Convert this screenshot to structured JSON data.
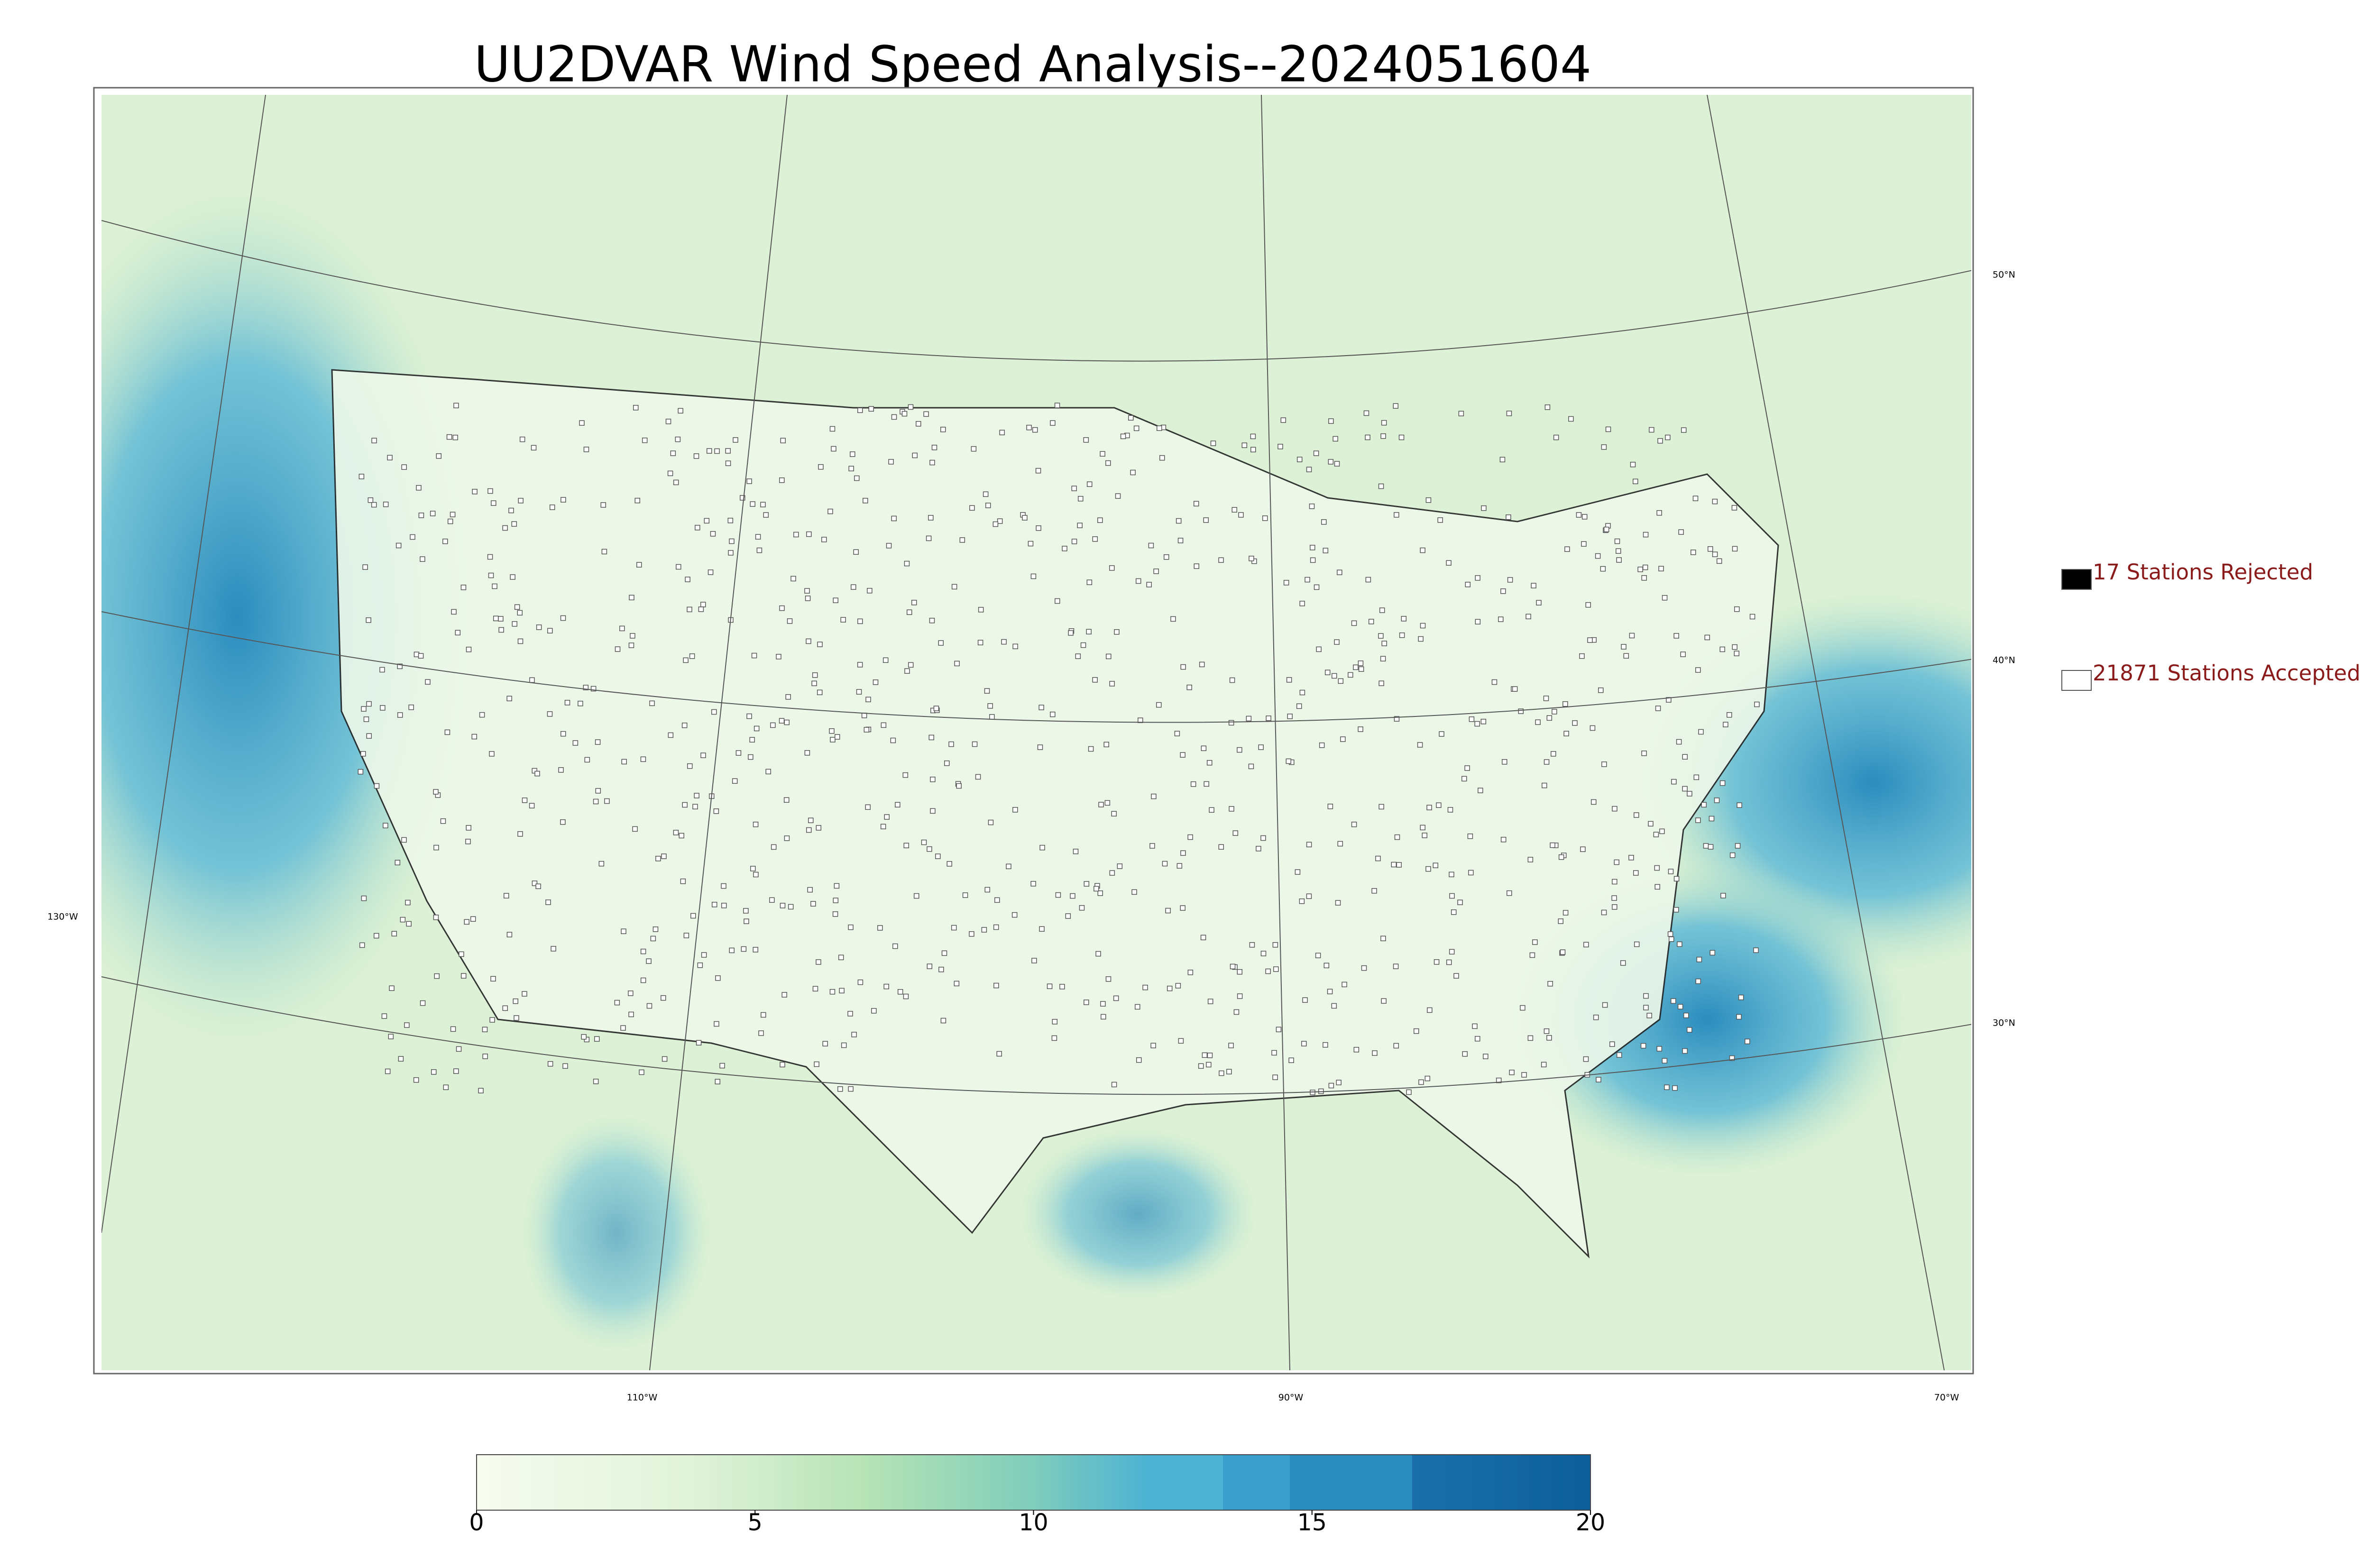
{
  "title": "UU2DVAR Wind Speed Analysis--2024051604",
  "map": {
    "lat_labels": [
      "50°N",
      "40°N",
      "30°N"
    ],
    "lon_labels": [
      "130°W",
      "110°W",
      "90°W",
      "70°W"
    ]
  },
  "legend": [
    {
      "label": "17 Stations Rejected",
      "fill": "#000000"
    },
    {
      "label": "21871 Stations Accepted",
      "fill": "#ffffff"
    }
  ],
  "colorbar": {
    "range": [
      0,
      20
    ],
    "ticks": [
      0,
      5,
      10,
      15,
      20
    ]
  }
}
